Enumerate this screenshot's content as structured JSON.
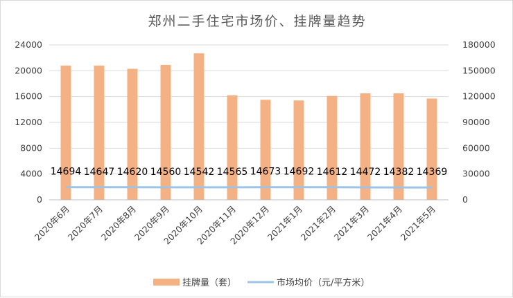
{
  "chart_data": {
    "type": "bar",
    "title": "郑州二手住宅市场价、挂牌量趋势",
    "categories": [
      "2020年6月",
      "2020年7月",
      "2020年8月",
      "2020年9月",
      "2020年10月",
      "2020年11月",
      "2020年12月",
      "2021年1月",
      "2021年2月",
      "2021年3月",
      "2021年4月",
      "2021年5月"
    ],
    "series": [
      {
        "name": "挂牌量（套）",
        "type": "bar",
        "axis": "left",
        "color": "#F4B183",
        "values": [
          20800,
          20800,
          20300,
          20900,
          22700,
          16200,
          15500,
          15400,
          16100,
          16500,
          16500,
          15700
        ]
      },
      {
        "name": "市场均价（元/平方米）",
        "type": "line",
        "axis": "right",
        "color": "#9DC3E6",
        "values": [
          14694,
          14647,
          14620,
          14560,
          14542,
          14565,
          14673,
          14692,
          14612,
          14472,
          14382,
          14369
        ]
      }
    ],
    "data_labels": [
      "14694",
      "14647",
      "14620",
      "14560",
      "14542",
      "14565",
      "14673",
      "14692",
      "14612",
      "14472",
      "14382",
      "14369"
    ],
    "y_left": {
      "ylim": [
        0,
        24000
      ],
      "ticks": [
        "0",
        "4000",
        "8000",
        "12000",
        "16000",
        "20000",
        "24000"
      ]
    },
    "y_right": {
      "ylim": [
        0,
        180000
      ],
      "ticks": [
        "0",
        "30000",
        "60000",
        "90000",
        "120000",
        "150000",
        "180000"
      ]
    },
    "grid": true,
    "legend": "bottom"
  }
}
